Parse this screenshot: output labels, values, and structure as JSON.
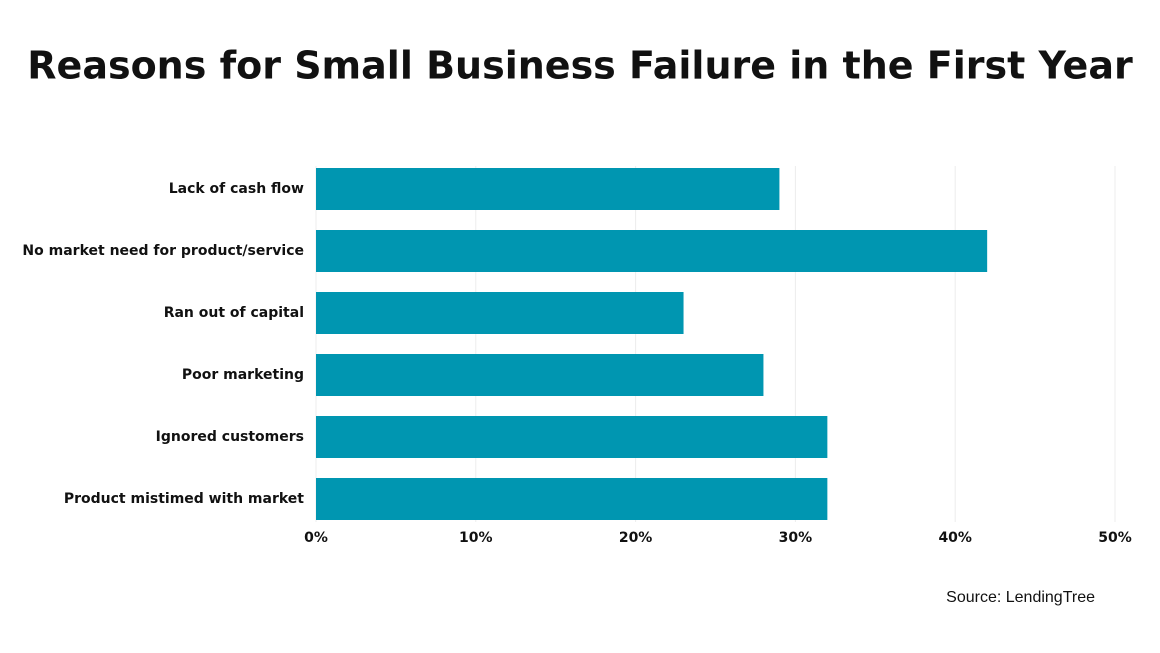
{
  "chart_data": {
    "type": "bar",
    "orientation": "horizontal",
    "title": "Reasons for Small Business Failure in the First Year",
    "categories": [
      "Lack of cash flow",
      "No market need for product/service",
      "Ran out of capital",
      "Poor marketing",
      "Ignored customers",
      "Product mistimed with market"
    ],
    "values": [
      29,
      42,
      23,
      28,
      32,
      32
    ],
    "color": "#0096b1",
    "xlim": [
      0,
      50
    ],
    "xticks": [
      {
        "value": 0,
        "label": "0%"
      },
      {
        "value": 10,
        "label": "10%"
      },
      {
        "value": 20,
        "label": "20%"
      },
      {
        "value": 30,
        "label": "30%"
      },
      {
        "value": 40,
        "label": "40%"
      },
      {
        "value": 50,
        "label": "50%"
      }
    ],
    "grid": true,
    "source": "Source: LendingTree"
  }
}
